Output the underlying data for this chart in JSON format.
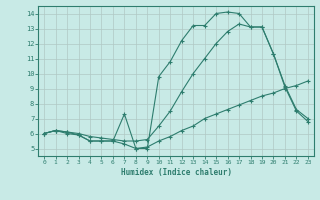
{
  "xlabel": "Humidex (Indice chaleur)",
  "xlim": [
    -0.5,
    23.5
  ],
  "ylim": [
    4.5,
    14.5
  ],
  "xticks": [
    0,
    1,
    2,
    3,
    4,
    5,
    6,
    7,
    8,
    9,
    10,
    11,
    12,
    13,
    14,
    15,
    16,
    17,
    18,
    19,
    20,
    21,
    22,
    23
  ],
  "yticks": [
    5,
    6,
    7,
    8,
    9,
    10,
    11,
    12,
    13,
    14
  ],
  "background_color": "#c8eae6",
  "grid_color": "#b0c8c4",
  "line_color": "#2e7d6e",
  "line1_y": [
    6.0,
    6.2,
    6.0,
    5.9,
    5.5,
    5.5,
    5.5,
    5.3,
    5.0,
    5.1,
    5.5,
    5.8,
    6.2,
    6.5,
    7.0,
    7.3,
    7.6,
    7.9,
    8.2,
    8.5,
    8.7,
    9.0,
    9.2,
    9.5
  ],
  "line2_y": [
    6.0,
    6.2,
    6.1,
    6.0,
    5.8,
    5.7,
    5.6,
    5.5,
    5.5,
    5.6,
    6.5,
    7.5,
    8.8,
    10.0,
    11.0,
    12.0,
    12.8,
    13.3,
    13.1,
    13.1,
    11.3,
    9.2,
    7.6,
    7.0
  ],
  "line3_y": [
    6.0,
    6.2,
    6.1,
    5.9,
    5.5,
    5.5,
    5.5,
    7.3,
    5.0,
    5.0,
    9.8,
    10.8,
    12.2,
    13.2,
    13.2,
    14.0,
    14.1,
    14.0,
    13.1,
    13.1,
    11.3,
    9.1,
    7.5,
    6.8
  ]
}
